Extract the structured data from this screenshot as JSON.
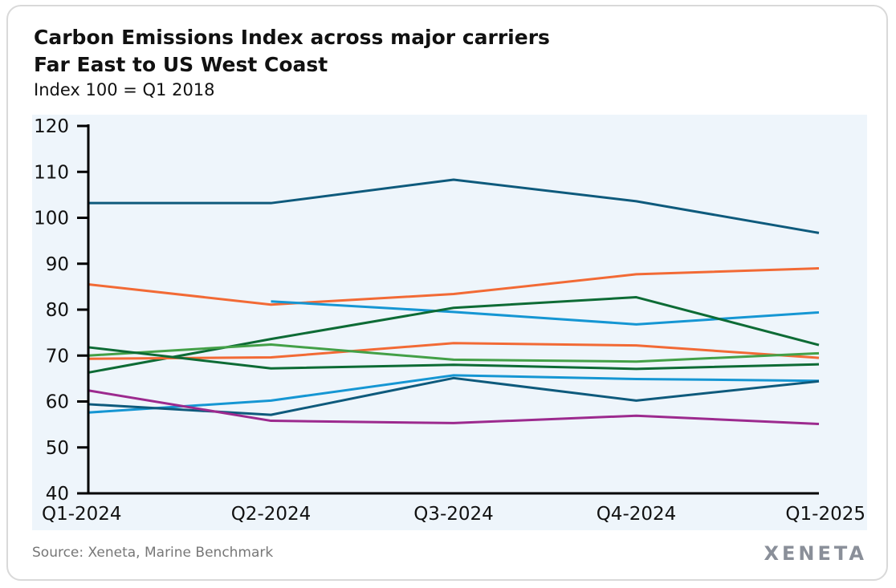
{
  "chart_data": {
    "type": "line",
    "title": "Carbon Emissions Index across major carriers",
    "title_line2": "Far East to US West Coast",
    "subtitle": "Index 100 = Q1 2018",
    "categories": [
      "Q1-2024",
      "Q2-2024",
      "Q3-2024",
      "Q4-2024",
      "Q1-2025"
    ],
    "ylim": [
      40,
      120
    ],
    "yticks": [
      40,
      50,
      60,
      70,
      80,
      90,
      100,
      110,
      120
    ],
    "grid": false,
    "series": [
      {
        "color": "#0e5a7c",
        "values": [
          103.2,
          103.2,
          108.3,
          103.6,
          96.7
        ]
      },
      {
        "color": "#f26a35",
        "values": [
          85.5,
          81.1,
          83.4,
          87.7,
          89.0
        ]
      },
      {
        "color": "#1596d3",
        "values": [
          null,
          81.8,
          79.5,
          76.8,
          79.4
        ]
      },
      {
        "color": "#0d6b35",
        "values": [
          66.3,
          73.6,
          80.4,
          82.7,
          72.3
        ]
      },
      {
        "color": "#f26a35",
        "values": [
          69.3,
          69.6,
          72.7,
          72.2,
          69.5
        ]
      },
      {
        "color": "#43a047",
        "values": [
          70.0,
          72.4,
          69.1,
          68.7,
          70.5
        ]
      },
      {
        "color": "#0d6b35",
        "values": [
          71.8,
          67.2,
          68.0,
          67.1,
          68.1
        ]
      },
      {
        "color": "#1596d3",
        "values": [
          57.6,
          60.2,
          65.7,
          64.9,
          64.5
        ]
      },
      {
        "color": "#0e5a7c",
        "values": [
          59.4,
          57.1,
          65.1,
          60.2,
          64.4
        ]
      },
      {
        "color": "#9c2a8e",
        "values": [
          62.4,
          55.8,
          55.3,
          56.9,
          55.1
        ]
      }
    ]
  },
  "source": "Source: Xeneta, Marine Benchmark",
  "logo": "XENETA"
}
